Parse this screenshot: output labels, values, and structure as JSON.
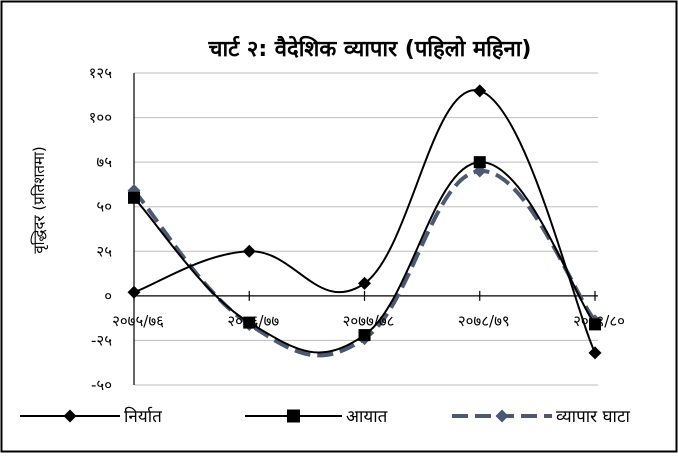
{
  "chart_data": {
    "type": "line",
    "title": "चार्ट २: वैदेशिक व्यापार (पहिलो महिना)",
    "xlabel": "",
    "ylabel": "वृद्धिदर (प्रतिशतमा)",
    "categories": [
      "२०७५/७६",
      "२०७६/७७",
      "२०७७/७८",
      "२०७८/७९",
      "२०७९/८०"
    ],
    "ylim": [
      -50,
      125
    ],
    "yticks": [
      -50,
      -25,
      0,
      25,
      50,
      75,
      100,
      125
    ],
    "ytick_labels": [
      "-५०",
      "-२५",
      "०",
      "२५",
      "५०",
      "७५",
      "१००",
      "१२५"
    ],
    "grid": true,
    "legend_position": "bottom",
    "series": [
      {
        "name": "निर्यात",
        "values": [
          2,
          25,
          7,
          115,
          -32
        ],
        "color": "#000000",
        "marker": "diamond",
        "line": "solid"
      },
      {
        "name": "आयात",
        "values": [
          55,
          -15,
          -22,
          75,
          -16
        ],
        "color": "#000000",
        "marker": "square",
        "line": "solid"
      },
      {
        "name": "व्यापार घाटा",
        "values": [
          59,
          -16,
          -24,
          70,
          -14
        ],
        "color": "#4a5a73",
        "marker": "diamond",
        "line": "dashed"
      }
    ]
  }
}
